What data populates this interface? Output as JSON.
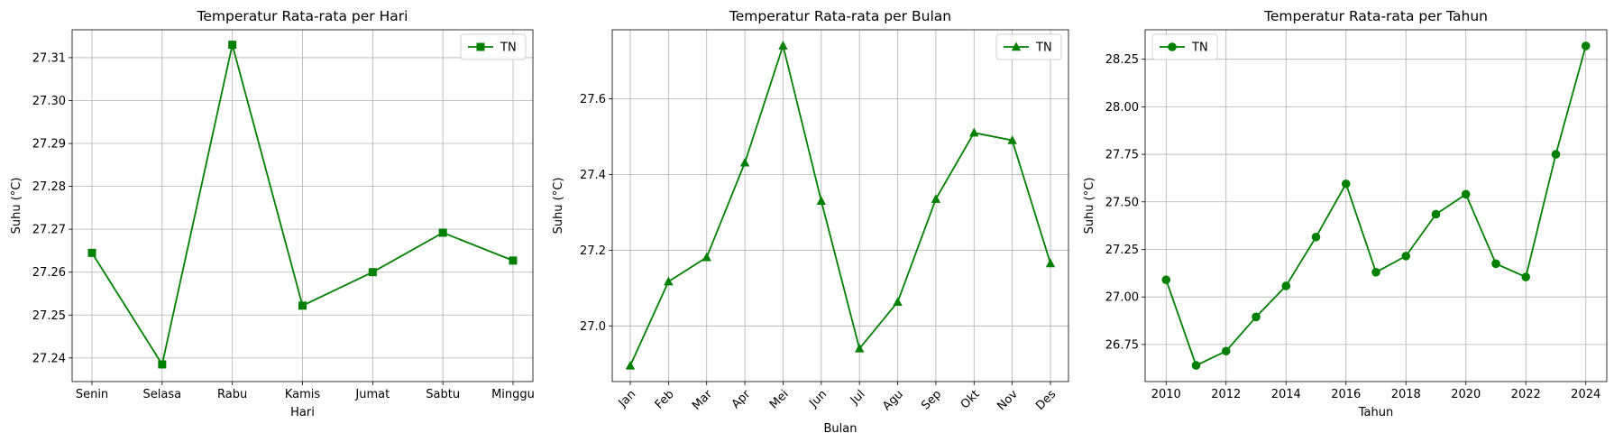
{
  "chart_data": [
    {
      "type": "line",
      "title": "Temperatur Rata-rata per Hari",
      "xlabel": "Hari",
      "ylabel": "Suhu (°C)",
      "categories": [
        "Senin",
        "Selasa",
        "Rabu",
        "Kamis",
        "Jumat",
        "Sabtu",
        "Minggu"
      ],
      "series": [
        {
          "name": "TN",
          "marker": "square",
          "color": "#008000",
          "values": [
            27.2645,
            27.2385,
            27.313,
            27.2522,
            27.26,
            27.2692,
            27.2627
          ]
        }
      ],
      "ylim": [
        27.2345,
        27.3165
      ],
      "yticks": [
        "27.24",
        "27.25",
        "27.26",
        "27.27",
        "27.28",
        "27.29",
        "27.30",
        "27.31"
      ],
      "grid": true,
      "legend_position": "top-right",
      "xtick_rotation": 0
    },
    {
      "type": "line",
      "title": "Temperatur Rata-rata per Bulan",
      "xlabel": "Bulan",
      "ylabel": "Suhu (°C)",
      "categories": [
        "Jan",
        "Feb",
        "Mar",
        "Apr",
        "Mei",
        "Jun",
        "Jul",
        "Agu",
        "Sep",
        "Okt",
        "Nov",
        "Des"
      ],
      "series": [
        {
          "name": "TN",
          "marker": "triangle",
          "color": "#008000",
          "values": [
            26.895,
            27.117,
            27.181,
            27.431,
            27.74,
            27.33,
            26.94,
            27.063,
            27.335,
            27.51,
            27.49,
            27.165
          ]
        }
      ],
      "ylim": [
        26.853,
        27.782
      ],
      "yticks": [
        "27.0",
        "27.2",
        "27.4",
        "27.6"
      ],
      "grid": true,
      "legend_position": "top-right",
      "xtick_rotation": -45
    },
    {
      "type": "line",
      "title": "Temperatur Rata-rata per Tahun",
      "xlabel": "Tahun",
      "ylabel": "Suhu (°C)",
      "x": [
        2010,
        2011,
        2012,
        2013,
        2014,
        2015,
        2016,
        2017,
        2018,
        2019,
        2020,
        2021,
        2022,
        2023,
        2024
      ],
      "series": [
        {
          "name": "TN",
          "marker": "circle",
          "color": "#008000",
          "values": [
            27.09,
            26.64,
            26.715,
            26.895,
            27.058,
            27.315,
            27.595,
            27.13,
            27.215,
            27.435,
            27.54,
            27.175,
            27.105,
            27.75,
            28.32
          ]
        }
      ],
      "xlim": [
        2009.3,
        2024.7
      ],
      "ylim": [
        26.555,
        28.405
      ],
      "xticks": [
        "2010",
        "2012",
        "2014",
        "2016",
        "2018",
        "2020",
        "2022",
        "2024"
      ],
      "yticks": [
        "26.75",
        "27.00",
        "27.25",
        "27.50",
        "27.75",
        "28.00",
        "28.25"
      ],
      "grid": true,
      "legend_position": "top-left",
      "xtick_rotation": 0
    }
  ]
}
